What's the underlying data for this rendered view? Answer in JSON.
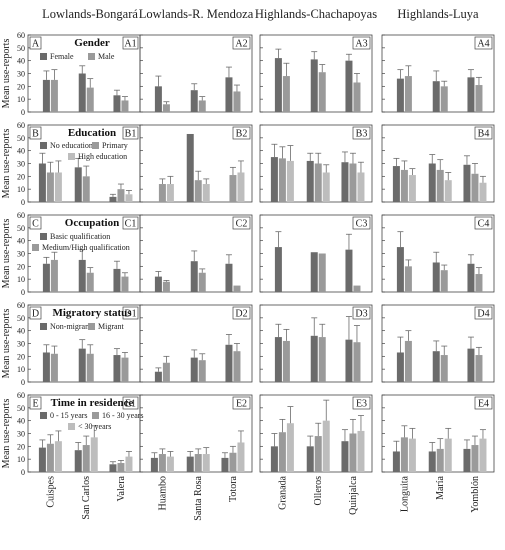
{
  "chart_data": {
    "type": "bar",
    "region_titles": [
      "Lowlands-Bongará",
      "Lowlands-R. Mendoza",
      "Highlands-Chachapoyas",
      "Highlands-Luya"
    ],
    "regions": [
      {
        "communities": [
          "Cuispes",
          "San Carlos",
          "Valera"
        ]
      },
      {
        "communities": [
          "Huambo",
          "Santa Rosa",
          "Totora"
        ]
      },
      {
        "communities": [
          "Granada",
          "Olleros",
          "Quinjalca"
        ]
      },
      {
        "communities": [
          "Longuita",
          "María",
          "Yomblón"
        ]
      }
    ],
    "ylabel": "Mean use-reports",
    "ylim": [
      0,
      60
    ],
    "yticks": [
      "0",
      "10",
      "20",
      "30",
      "40",
      "50",
      "60"
    ],
    "colors": {
      "dark": "#6b6b6b",
      "mid": "#9a9a9a",
      "light": "#bdbdbd",
      "error": "#6b6b6b"
    },
    "rows": [
      {
        "letter": "A",
        "title": "Gender",
        "panel_labels": [
          "A",
          "A1",
          "A2",
          "A3",
          "A4"
        ],
        "series": [
          {
            "name": "Female",
            "color": "dark"
          },
          {
            "name": "Male",
            "color": "mid"
          }
        ],
        "values": [
          [
            [
              25,
              25
            ],
            [
              30,
              19
            ],
            [
              13,
              9
            ]
          ],
          [
            [
              20,
              6
            ],
            [
              17,
              9
            ],
            [
              27,
              16
            ]
          ],
          [
            [
              42,
              28
            ],
            [
              41,
              31
            ],
            [
              40,
              23
            ]
          ],
          [
            [
              26,
              28
            ],
            [
              24,
              20
            ],
            [
              27,
              21
            ]
          ]
        ],
        "errors": [
          [
            [
              7,
              8
            ],
            [
              6,
              7
            ],
            [
              4,
              3
            ]
          ],
          [
            [
              8,
              2
            ],
            [
              5,
              3
            ],
            [
              8,
              5
            ]
          ],
          [
            [
              7,
              10
            ],
            [
              6,
              6
            ],
            [
              5,
              7
            ]
          ],
          [
            [
              7,
              8
            ],
            [
              8,
              4
            ],
            [
              6,
              6
            ]
          ]
        ]
      },
      {
        "letter": "B",
        "title": "Education",
        "panel_labels": [
          "B",
          "B1",
          "B2",
          "B3",
          "B4"
        ],
        "series": [
          {
            "name": "No education",
            "color": "dark"
          },
          {
            "name": "Primary",
            "color": "mid"
          },
          {
            "name": "High education",
            "color": "light"
          }
        ],
        "values": [
          [
            [
              30,
              23,
              23
            ],
            [
              27,
              20,
              null
            ],
            [
              4,
              10,
              6
            ]
          ],
          [
            [
              null,
              14,
              14
            ],
            [
              53,
              17,
              14
            ],
            [
              null,
              21,
              23
            ]
          ],
          [
            [
              35,
              34,
              32
            ],
            [
              32,
              30,
              23
            ],
            [
              31,
              30,
              23
            ]
          ],
          [
            [
              28,
              25,
              21
            ],
            [
              30,
              25,
              17
            ],
            [
              29,
              22,
              15
            ]
          ]
        ],
        "errors": [
          [
            [
              8,
              8,
              9
            ],
            [
              7,
              8,
              null
            ],
            [
              2,
              4,
              3
            ]
          ],
          [
            [
              null,
              4,
              6
            ],
            [
              0,
              7,
              4
            ],
            [
              null,
              6,
              9
            ]
          ],
          [
            [
              10,
              9,
              12
            ],
            [
              6,
              8,
              6
            ],
            [
              8,
              8,
              8
            ]
          ],
          [
            [
              6,
              7,
              5
            ],
            [
              7,
              8,
              6
            ],
            [
              7,
              8,
              5
            ]
          ]
        ]
      },
      {
        "letter": "C",
        "title": "Occupation",
        "panel_labels": [
          "C",
          "C1",
          "C2",
          "C3",
          "C4"
        ],
        "series": [
          {
            "name": "Basic qualification",
            "color": "dark"
          },
          {
            "name": "Medium/High qualification",
            "color": "mid"
          }
        ],
        "values": [
          [
            [
              22,
              25
            ],
            [
              25,
              15
            ],
            [
              18,
              12
            ]
          ],
          [
            [
              12,
              8
            ],
            [
              24,
              15
            ],
            [
              22,
              5
            ]
          ],
          [
            [
              35,
              null
            ],
            [
              31,
              30
            ],
            [
              33,
              5
            ]
          ],
          [
            [
              35,
              20
            ],
            [
              23,
              17
            ],
            [
              22,
              14
            ]
          ]
        ],
        "errors": [
          [
            [
              5,
              6
            ],
            [
              8,
              4
            ],
            [
              6,
              3
            ]
          ],
          [
            [
              4,
              1
            ],
            [
              8,
              3
            ],
            [
              7,
              0
            ]
          ],
          [
            [
              12,
              null
            ],
            [
              0,
              0
            ],
            [
              12,
              0
            ]
          ],
          [
            [
              12,
              5
            ],
            [
              8,
              4
            ],
            [
              7,
              5
            ]
          ]
        ]
      },
      {
        "letter": "D",
        "title": "Migratory status",
        "panel_labels": [
          "D",
          "D1",
          "D2",
          "D3",
          "D4"
        ],
        "series": [
          {
            "name": "Non-migrant",
            "color": "dark"
          },
          {
            "name": "Migrant",
            "color": "mid"
          }
        ],
        "values": [
          [
            [
              23,
              22
            ],
            [
              26,
              22
            ],
            [
              21,
              19
            ]
          ],
          [
            [
              8,
              15
            ],
            [
              19,
              17
            ],
            [
              29,
              24
            ]
          ],
          [
            [
              35,
              32
            ],
            [
              36,
              35
            ],
            [
              33,
              31
            ]
          ],
          [
            [
              23,
              32
            ],
            [
              24,
              21
            ],
            [
              26,
              21
            ]
          ]
        ],
        "errors": [
          [
            [
              6,
              6
            ],
            [
              7,
              7
            ],
            [
              5,
              4
            ]
          ],
          [
            [
              3,
              5
            ],
            [
              6,
              5
            ],
            [
              8,
              6
            ]
          ],
          [
            [
              10,
              9
            ],
            [
              14,
              10
            ],
            [
              18,
              13
            ]
          ],
          [
            [
              12,
              8
            ],
            [
              8,
              7
            ],
            [
              9,
              6
            ]
          ]
        ]
      },
      {
        "letter": "E",
        "title": "Time in residence",
        "panel_labels": [
          "E",
          "E1",
          "E2",
          "E3",
          "E4"
        ],
        "series": [
          {
            "name": "0 - 15 years",
            "color": "dark"
          },
          {
            "name": "16 - 30 years",
            "color": "mid"
          },
          {
            "name": "< 30 years",
            "color": "light"
          }
        ],
        "values": [
          [
            [
              19,
              22,
              24
            ],
            [
              17,
              21,
              27
            ],
            [
              6,
              7,
              12
            ]
          ],
          [
            [
              11,
              14,
              12
            ],
            [
              12,
              14,
              14
            ],
            [
              11,
              15,
              23
            ]
          ],
          [
            [
              20,
              31,
              38
            ],
            [
              20,
              28,
              40
            ],
            [
              24,
              30,
              32
            ]
          ],
          [
            [
              16,
              27,
              26
            ],
            [
              16,
              18,
              26
            ],
            [
              18,
              21,
              26
            ]
          ]
        ],
        "errors": [
          [
            [
              6,
              7,
              8
            ],
            [
              6,
              7,
              9
            ],
            [
              2,
              2,
              4
            ]
          ],
          [
            [
              4,
              4,
              4
            ],
            [
              4,
              4,
              5
            ],
            [
              4,
              5,
              9
            ]
          ],
          [
            [
              10,
              10,
              13
            ],
            [
              8,
              10,
              16
            ],
            [
              9,
              11,
              12
            ]
          ],
          [
            [
              8,
              9,
              8
            ],
            [
              7,
              8,
              8
            ],
            [
              7,
              7,
              7
            ]
          ]
        ]
      }
    ]
  }
}
